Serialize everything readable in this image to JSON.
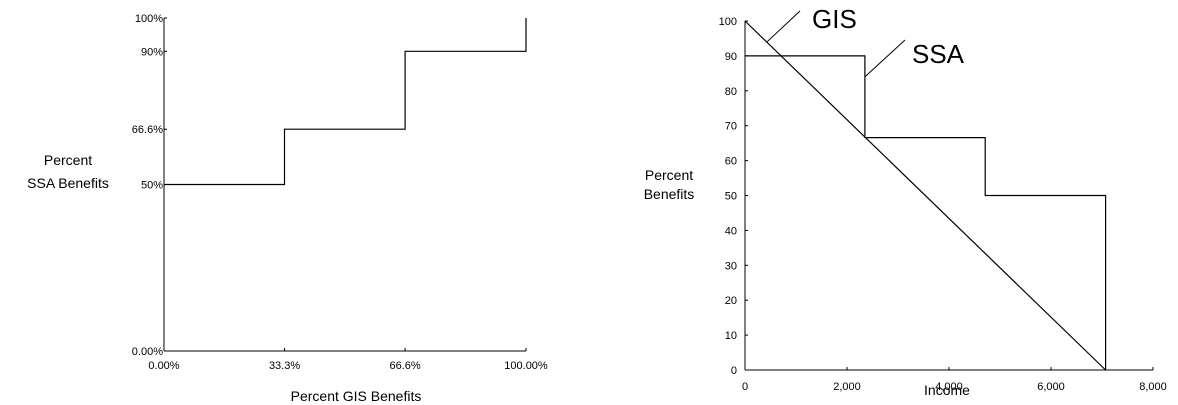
{
  "chart_data": [
    {
      "type": "line",
      "title": "",
      "xlabel": "Percent GIS Benefits",
      "ylabel_lines": [
        "Percent",
        "SSA Benefits"
      ],
      "x_ticks": [
        {
          "v": 0,
          "label": "0.00%"
        },
        {
          "v": 33.3,
          "label": "33.3%"
        },
        {
          "v": 66.6,
          "label": "66.6%"
        },
        {
          "v": 100,
          "label": "100.00%"
        }
      ],
      "y_ticks": [
        {
          "v": 0,
          "label": "0.00%"
        },
        {
          "v": 50,
          "label": "50%"
        },
        {
          "v": 66.6,
          "label": "66.6%"
        },
        {
          "v": 90,
          "label": "90%"
        },
        {
          "v": 100,
          "label": "100%"
        }
      ],
      "xlim": [
        0,
        100
      ],
      "ylim": [
        0,
        100
      ],
      "grid": false,
      "series": [
        {
          "x": [
            0,
            33.3,
            33.3,
            66.6,
            66.6,
            100,
            100
          ],
          "y": [
            50,
            50,
            66.6,
            66.6,
            90,
            90,
            100
          ]
        }
      ]
    },
    {
      "type": "line",
      "title": "",
      "xlabel": "Income",
      "ylabel_lines": [
        "Percent",
        "Benefits"
      ],
      "x_ticks": [
        {
          "v": 0,
          "label": "0"
        },
        {
          "v": 2000,
          "label": "2,000"
        },
        {
          "v": 4000,
          "label": "4,000"
        },
        {
          "v": 6000,
          "label": "6,000"
        },
        {
          "v": 8000,
          "label": "8,000"
        }
      ],
      "y_ticks": [
        {
          "v": 0,
          "label": "0"
        },
        {
          "v": 10,
          "label": "10"
        },
        {
          "v": 20,
          "label": "20"
        },
        {
          "v": 30,
          "label": "30"
        },
        {
          "v": 40,
          "label": "40"
        },
        {
          "v": 50,
          "label": "50"
        },
        {
          "v": 60,
          "label": "60"
        },
        {
          "v": 70,
          "label": "70"
        },
        {
          "v": 80,
          "label": "80"
        },
        {
          "v": 90,
          "label": "90"
        },
        {
          "v": 100,
          "label": "100"
        }
      ],
      "xlim": [
        0,
        8000
      ],
      "ylim": [
        0,
        100
      ],
      "grid": false,
      "series": [
        {
          "name": "GIS",
          "x": [
            0,
            7070
          ],
          "y": [
            100,
            0
          ]
        },
        {
          "name": "SSA",
          "x": [
            0,
            2350,
            2350,
            4710,
            4710,
            7070,
            7070
          ],
          "y": [
            90,
            90,
            66.6,
            66.6,
            50,
            50,
            0
          ]
        }
      ],
      "callouts": [
        {
          "label": "GIS",
          "series": "GIS",
          "anchor_x": 430,
          "anchor_y": 94
        },
        {
          "label": "SSA",
          "series": "SSA",
          "anchor_x": 2350,
          "anchor_y": 84
        }
      ]
    }
  ]
}
